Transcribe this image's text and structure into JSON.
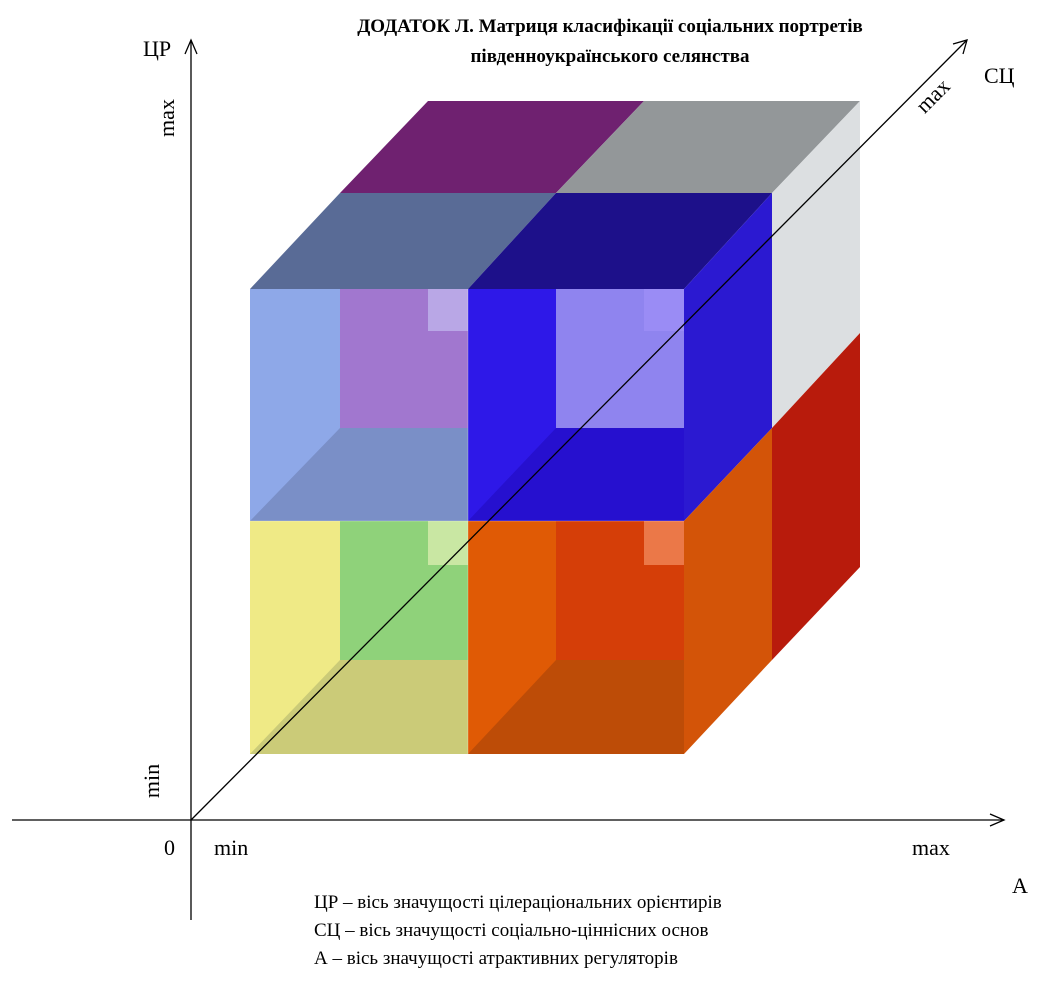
{
  "title": {
    "line1": "ДОДАТОК  Л. Матриця класифікації соціальних портретів",
    "line2": "південноукраїнського селянства"
  },
  "axes": {
    "vertical": {
      "name": "ЦР",
      "max_label": "max",
      "min_label": "min"
    },
    "horizontal": {
      "name": "А",
      "min_label": "min",
      "max_label": "max"
    },
    "depth": {
      "name": "СЦ",
      "max_label": "max"
    },
    "origin_label": "0"
  },
  "legend": [
    "ЦР – вісь значущості цілераціональних орієнтирів",
    "СЦ – вісь значущості соціально-ціннісних основ",
    "А – вісь значущості атрактивних регуляторів"
  ],
  "colors": {
    "top_back_left": "#6f2170",
    "top_back_right": "#939799",
    "top_front_left": "#596b96",
    "top_front_right": "#1d108a",
    "right_back_upper": "#dcdfe1",
    "right_back_lower": "#b81b0c",
    "right_front_upper": "#2b19d1",
    "right_front_lower": "#d35408",
    "front_upper_left": "#8ea8e8",
    "front_upper_right": "#2e18e8",
    "front_lower_left": "#efea86",
    "front_lower_right": "#e05a05",
    "inner_upper_left": "#a177cf",
    "inner_upper_left_floor": "#7a8fc7",
    "inner_upper_right": "#8f84ef",
    "inner_upper_right_floor": "#2610cf",
    "inner_lower_left": "#8fd27a",
    "inner_lower_left_floor": "#cbcb78",
    "inner_lower_right": "#d53e08",
    "inner_lower_right_floor": "#bd4c07",
    "corner_upper_left": "#b9a7e6",
    "corner_upper_right": "#9a8cf5",
    "corner_lower_left": "#c9e7a3",
    "corner_lower_right": "#eb7848"
  }
}
